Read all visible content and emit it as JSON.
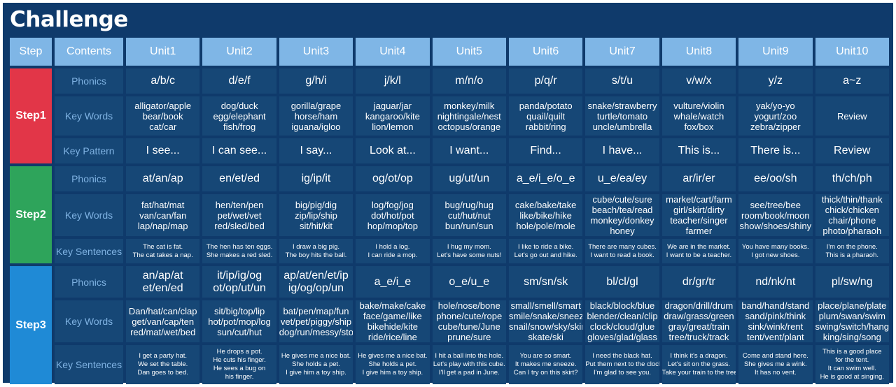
{
  "title": "Challenge",
  "headers": [
    "Step",
    "Contents",
    "Unit1",
    "Unit2",
    "Unit3",
    "Unit4",
    "Unit5",
    "Unit6",
    "Unit7",
    "Unit8",
    "Unit9",
    "Unit10"
  ],
  "colors": {
    "background": "#0f3a6b",
    "cell": "#164776",
    "header": "#7fb6e6",
    "step1": "#e23648",
    "step2": "#2ea45b",
    "step3": "#1f8ad6",
    "label_text": "#7fb2e2"
  },
  "steps": [
    {
      "name": "Step1",
      "rows": [
        {
          "label": "Phonics",
          "size": "big",
          "cells": [
            [
              "a/b/c"
            ],
            [
              "d/e/f"
            ],
            [
              "g/h/i"
            ],
            [
              "j/k/l"
            ],
            [
              "m/n/o"
            ],
            [
              "p/q/r"
            ],
            [
              "s/t/u"
            ],
            [
              "v/w/x"
            ],
            [
              "y/z"
            ],
            [
              "a~z"
            ]
          ]
        },
        {
          "label": "Key Words",
          "size": "med",
          "cells": [
            [
              "alligator/apple",
              "bear/book",
              "cat/car"
            ],
            [
              "dog/duck",
              "egg/elephant",
              "fish/frog"
            ],
            [
              "gorilla/grape",
              "horse/ham",
              "iguana/igloo"
            ],
            [
              "jaguar/jar",
              "kangaroo/kite",
              "lion/lemon"
            ],
            [
              "monkey/milk",
              "nightingale/nest",
              "octopus/orange"
            ],
            [
              "panda/potato",
              "quail/quilt",
              "rabbit/ring"
            ],
            [
              "snake/strawberry",
              "turtle/tomato",
              "uncle/umbrella"
            ],
            [
              "vulture/violin",
              "whale/watch",
              "fox/box"
            ],
            [
              "yak/yo-yo",
              "yogurt/zoo",
              "zebra/zipper"
            ],
            [
              "Review"
            ]
          ]
        },
        {
          "label": "Key Pattern",
          "size": "big",
          "cells": [
            [
              "I see..."
            ],
            [
              "I can see..."
            ],
            [
              "I say..."
            ],
            [
              "Look at..."
            ],
            [
              "I want..."
            ],
            [
              "Find..."
            ],
            [
              "I have..."
            ],
            [
              "This is..."
            ],
            [
              "There is..."
            ],
            [
              "Review"
            ]
          ]
        }
      ]
    },
    {
      "name": "Step2",
      "rows": [
        {
          "label": "Phonics",
          "size": "big",
          "cells": [
            [
              "at/an/ap"
            ],
            [
              "en/et/ed"
            ],
            [
              "ig/ip/it"
            ],
            [
              "og/ot/op"
            ],
            [
              "ug/ut/un"
            ],
            [
              "a_e/i_e/o_e"
            ],
            [
              "u_e/ea/ey"
            ],
            [
              "ar/ir/er"
            ],
            [
              "ee/oo/sh"
            ],
            [
              "th/ch/ph"
            ]
          ]
        },
        {
          "label": "Key Words",
          "size": "med",
          "cells": [
            [
              "fat/hat/mat",
              "van/can/fan",
              "lap/nap/map"
            ],
            [
              "hen/ten/pen",
              "pet/wet/vet",
              "red/sled/bed"
            ],
            [
              "big/pig/dig",
              "zip/lip/ship",
              "sit/hit/kit"
            ],
            [
              "log/fog/jog",
              "dot/hot/pot",
              "hop/mop/top"
            ],
            [
              "bug/rug/hug",
              "cut/hut/nut",
              "bun/run/sun"
            ],
            [
              "cake/bake/take",
              "like/bike/hike",
              "hole/pole/mole"
            ],
            [
              "cube/cute/sure",
              "beach/tea/read",
              "monkey/donkey",
              "honey"
            ],
            [
              "market/cart/farm",
              "girl/skirt/dirty",
              "teacher/singer",
              "farmer"
            ],
            [
              "see/tree/bee",
              "room/book/moon",
              "show/shoes/shiny"
            ],
            [
              "thick/thin/thank",
              "chick/chicken",
              "chair/phone",
              "photo/pharaoh"
            ]
          ]
        },
        {
          "label": "Key Sentences",
          "size": "sml",
          "cells": [
            [
              "The cat is fat.",
              "The cat takes a nap."
            ],
            [
              "The hen has ten eggs.",
              "She makes a red sled."
            ],
            [
              "I draw a big pig.",
              "The boy hits the ball."
            ],
            [
              "I hold a log.",
              "I can ride a mop."
            ],
            [
              "I hug my mom.",
              "Let's have some nuts!"
            ],
            [
              "I like to ride a bike.",
              "Let's go out and hike."
            ],
            [
              "There are many cubes.",
              "I want to read a book."
            ],
            [
              "We are in the market.",
              "I want to be a teacher."
            ],
            [
              "You have many books.",
              "I got new shoes."
            ],
            [
              "I'm on the phone.",
              "This is a pharaoh."
            ]
          ]
        }
      ]
    },
    {
      "name": "Step3",
      "rows": [
        {
          "label": "Phonics",
          "size": "big",
          "cells": [
            [
              "an/ap/at",
              "et/en/ed"
            ],
            [
              "it/ip/ig/og",
              "ot/op/ut/un"
            ],
            [
              "ap/at/en/et/ip",
              "ig/og/op/un"
            ],
            [
              "a_e/i_e"
            ],
            [
              "o_e/u_e"
            ],
            [
              "sm/sn/sk"
            ],
            [
              "bl/cl/gl"
            ],
            [
              "dr/gr/tr"
            ],
            [
              "nd/nk/nt"
            ],
            [
              "pl/sw/ng"
            ]
          ]
        },
        {
          "label": "Key Words",
          "size": "med",
          "cells": [
            [
              "Dan/hat/can/clap",
              "get/van/cap/ten",
              "red/mat/wet/bed"
            ],
            [
              "sit/big/top/lip",
              "hot/pot/mop/log",
              "sun/cut/hut"
            ],
            [
              "bat/pen/map/fun",
              "vet/pet/piggy/ship",
              "dog/run/messy/stop"
            ],
            [
              "bake/make/cake",
              "face/game/like",
              "bikehide/kite",
              "ride/rice/line"
            ],
            [
              "hole/nose/bone",
              "phone/cute/rope",
              "cube/tune/June",
              "prune/sure"
            ],
            [
              "small/smell/smart",
              "smile/snake/sneeze",
              "snail/snow/sky/skirt",
              "skate/ski"
            ],
            [
              "black/block/blue",
              "blender/clean/clip",
              "clock/cloud/glue",
              "gloves/glad/glass"
            ],
            [
              "dragon/drill/drum",
              "draw/grass/green",
              "gray/great/train",
              "tree/truck/track"
            ],
            [
              "band/hand/stand",
              "sand/pink/think",
              "sink/wink/rent",
              "tent/vent/plant"
            ],
            [
              "place/plane/plate",
              "plum/swan/swim",
              "swing/switch/hang",
              "king/sing/song"
            ]
          ]
        },
        {
          "label": "Key Sentences",
          "size": "sml",
          "cells": [
            [
              "I get a party hat.",
              "We set the table.",
              "Dan goes to bed."
            ],
            [
              "He drops a pot.",
              "He cuts his finger.",
              "He sees a bug on",
              "his finger."
            ],
            [
              "He gives me a nice bat.",
              "She holds a pet.",
              "I give him a toy ship."
            ],
            [
              "He gives me a nice bat.",
              "She holds a pet.",
              "I give him a toy ship."
            ],
            [
              "I hit a ball into the hole.",
              "Let's play with this cube.",
              "I'll get a pad in June."
            ],
            [
              "You are so smart.",
              "It makes me sneeze.",
              "Can I try on this skirt?"
            ],
            [
              "I need the black hat.",
              "Put them next to the clock.",
              "I'm glad to see you."
            ],
            [
              "I think it's a dragon.",
              "Let's sit on the grass.",
              "Take your train to the tree."
            ],
            [
              "Come and stand here.",
              "She gives me a wink.",
              "It has no vent."
            ],
            [
              "This is a good place",
              "for the tent.",
              "It can swim well.",
              "He is good at singing."
            ]
          ]
        }
      ]
    }
  ]
}
